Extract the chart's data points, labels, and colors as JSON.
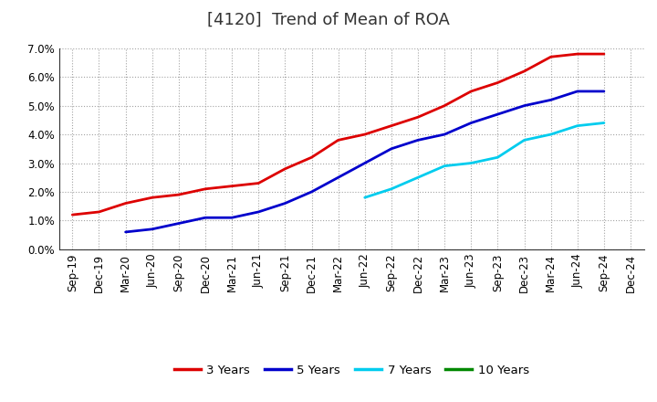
{
  "title": "[4120]  Trend of Mean of ROA",
  "x_labels": [
    "Sep-19",
    "Dec-19",
    "Mar-20",
    "Jun-20",
    "Sep-20",
    "Dec-20",
    "Mar-21",
    "Jun-21",
    "Sep-21",
    "Dec-21",
    "Mar-22",
    "Jun-22",
    "Sep-22",
    "Dec-22",
    "Mar-23",
    "Jun-23",
    "Sep-23",
    "Dec-23",
    "Mar-24",
    "Jun-24",
    "Sep-24",
    "Dec-24"
  ],
  "y_min": 0.0,
  "y_max": 0.07,
  "y_ticks": [
    0.0,
    0.01,
    0.02,
    0.03,
    0.04,
    0.05,
    0.06,
    0.07
  ],
  "series": {
    "3 Years": {
      "color": "#dd0000",
      "values": [
        0.012,
        0.013,
        0.016,
        0.018,
        0.019,
        0.021,
        0.022,
        0.023,
        0.028,
        0.032,
        0.038,
        0.04,
        0.043,
        0.046,
        0.05,
        0.055,
        0.058,
        0.062,
        0.067,
        0.068,
        0.068,
        null
      ]
    },
    "5 Years": {
      "color": "#0000cc",
      "values": [
        null,
        null,
        0.006,
        0.007,
        0.009,
        0.011,
        0.011,
        0.013,
        0.016,
        0.02,
        0.025,
        0.03,
        0.035,
        0.038,
        0.04,
        0.044,
        0.047,
        0.05,
        0.052,
        0.055,
        0.055,
        null
      ]
    },
    "7 Years": {
      "color": "#00ccee",
      "values": [
        null,
        null,
        null,
        null,
        null,
        null,
        null,
        null,
        null,
        null,
        null,
        0.018,
        0.021,
        0.025,
        0.029,
        0.03,
        0.032,
        0.038,
        0.04,
        0.043,
        0.044,
        null
      ]
    },
    "10 Years": {
      "color": "#008800",
      "values": [
        null,
        null,
        null,
        null,
        null,
        null,
        null,
        null,
        null,
        null,
        null,
        null,
        null,
        null,
        null,
        null,
        null,
        null,
        null,
        null,
        null,
        null
      ]
    }
  },
  "legend_order": [
    "3 Years",
    "5 Years",
    "7 Years",
    "10 Years"
  ],
  "background_color": "#ffffff",
  "plot_bg_color": "#ffffff",
  "grid_color": "#999999",
  "title_fontsize": 13,
  "tick_fontsize": 8.5,
  "legend_fontsize": 9.5,
  "line_width": 2.0
}
